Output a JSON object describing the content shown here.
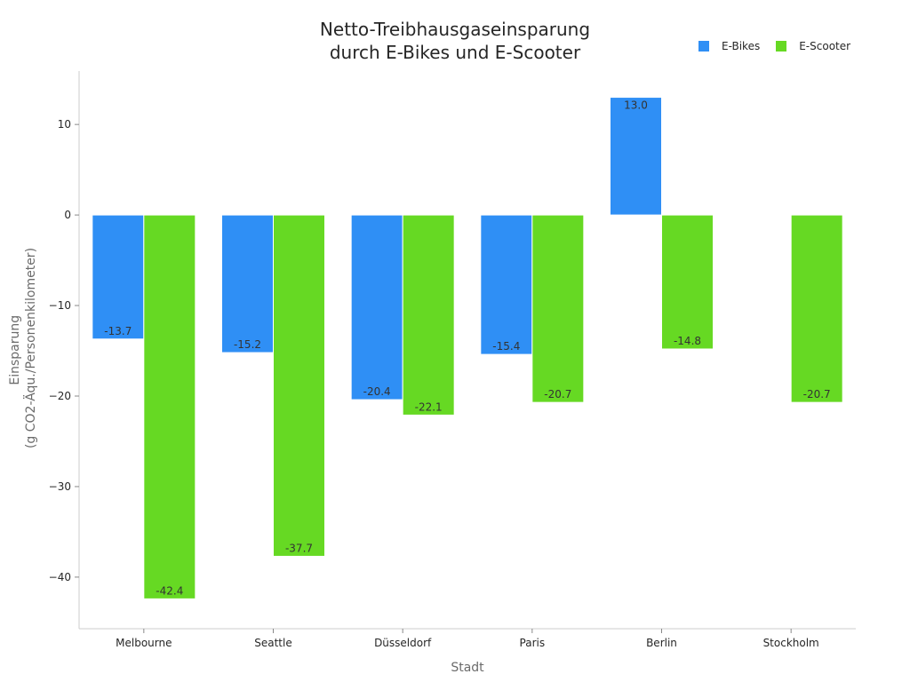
{
  "chart_data": {
    "type": "bar",
    "title": [
      "Netto-Treibhausgaseinsparung",
      "durch E-Bikes und E-Scooter"
    ],
    "xlabel": "Stadt",
    "ylabel": [
      "Einsparung",
      "(g CO2-Äqu./Personenkilometer)"
    ],
    "categories": [
      "Melbourne",
      "Seattle",
      "Düsseldorf",
      "Paris",
      "Berlin",
      "Stockholm"
    ],
    "series": [
      {
        "name": "E-Bikes",
        "color": "#2f8ff5",
        "values": [
          -13.7,
          -15.2,
          -20.4,
          -15.4,
          13.0,
          null
        ]
      },
      {
        "name": "E-Scooter",
        "color": "#66d923",
        "values": [
          -42.4,
          -37.7,
          -22.1,
          -20.7,
          -14.8,
          -20.7
        ]
      }
    ],
    "yticks": [
      10,
      0,
      -10,
      -20,
      -30,
      -40
    ],
    "ytick_labels": [
      "10",
      "0",
      "−10",
      "−20",
      "−30",
      "−40"
    ],
    "ylim": [
      -45.7,
      15.9
    ],
    "legend_position": "top-right",
    "grid": false
  }
}
